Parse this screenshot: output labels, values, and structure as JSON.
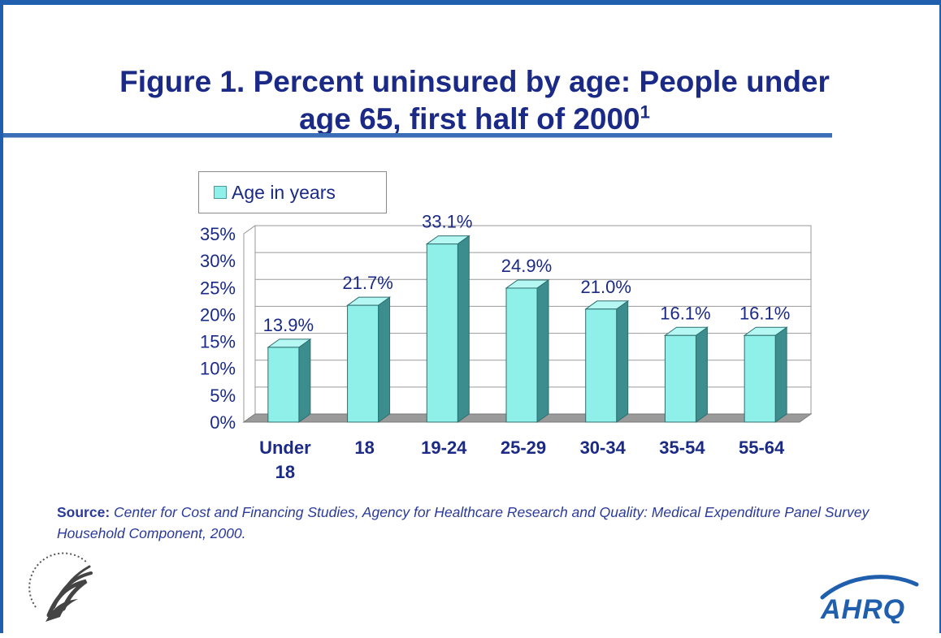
{
  "title": {
    "line1": "Figure 1. Percent uninsured by age: People under",
    "line2": "age 65, first half of 2000",
    "footnote_mark": "1"
  },
  "legend": {
    "label": "Age in years"
  },
  "source": {
    "label": "Source:",
    "text": "Center for Cost and Financing Studies, Agency for Healthcare Research and Quality: Medical Expenditure Panel Survey Household Component, 2000."
  },
  "logos": {
    "left": "hhs-eagle-logo",
    "right": "AHRQ"
  },
  "colors": {
    "title": "#1a2a86",
    "bar_front": "#8ff0ea",
    "bar_side": "#3c8d8d",
    "bar_top": "#b5f7f3",
    "frame": "#1f5fae"
  },
  "chart_data": {
    "type": "bar",
    "categories": [
      "Under 18",
      "18",
      "19-24",
      "25-29",
      "30-34",
      "35-54",
      "55-64"
    ],
    "series": [
      {
        "name": "Age in years",
        "values": [
          13.9,
          21.7,
          33.1,
          24.9,
          21.0,
          16.1,
          16.1
        ]
      }
    ],
    "data_labels": [
      "13.9%",
      "21.7%",
      "33.1%",
      "24.9%",
      "21.0%",
      "16.1%",
      "16.1%"
    ],
    "y_ticks": [
      "0%",
      "5%",
      "10%",
      "15%",
      "20%",
      "25%",
      "30%",
      "35%"
    ],
    "ylim": [
      0,
      35
    ],
    "grid": true,
    "legend_position": "top-left"
  }
}
